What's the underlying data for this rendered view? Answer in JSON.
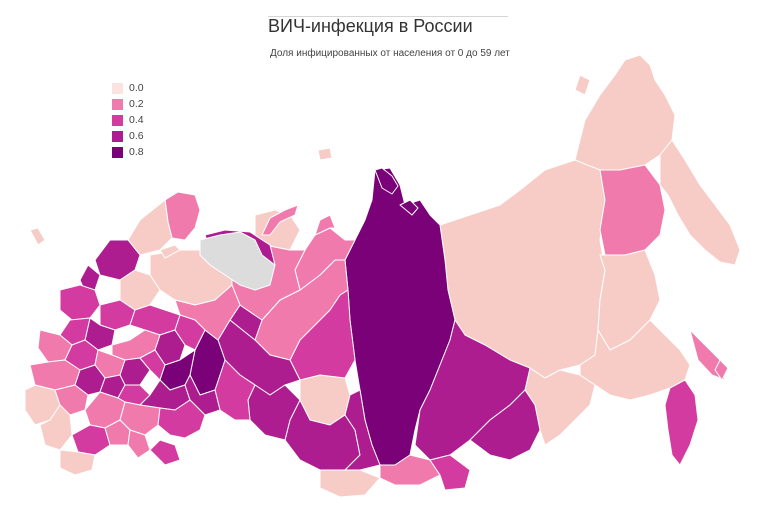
{
  "title": "ВИЧ-инфекция в России",
  "subtitle": "Доля инфицированных от населения от 0 до 59 лет",
  "legend": {
    "items": [
      {
        "label": "0.0",
        "color": "#fbe4df"
      },
      {
        "label": "0.2",
        "color": "#f17aac"
      },
      {
        "label": "0.4",
        "color": "#d33ba0"
      },
      {
        "label": "0.6",
        "color": "#ad1d8f"
      },
      {
        "label": "0.8",
        "color": "#7a0177"
      }
    ]
  },
  "colors": {
    "nodata": "#dcdcdc",
    "border": "#ffffff"
  }
}
